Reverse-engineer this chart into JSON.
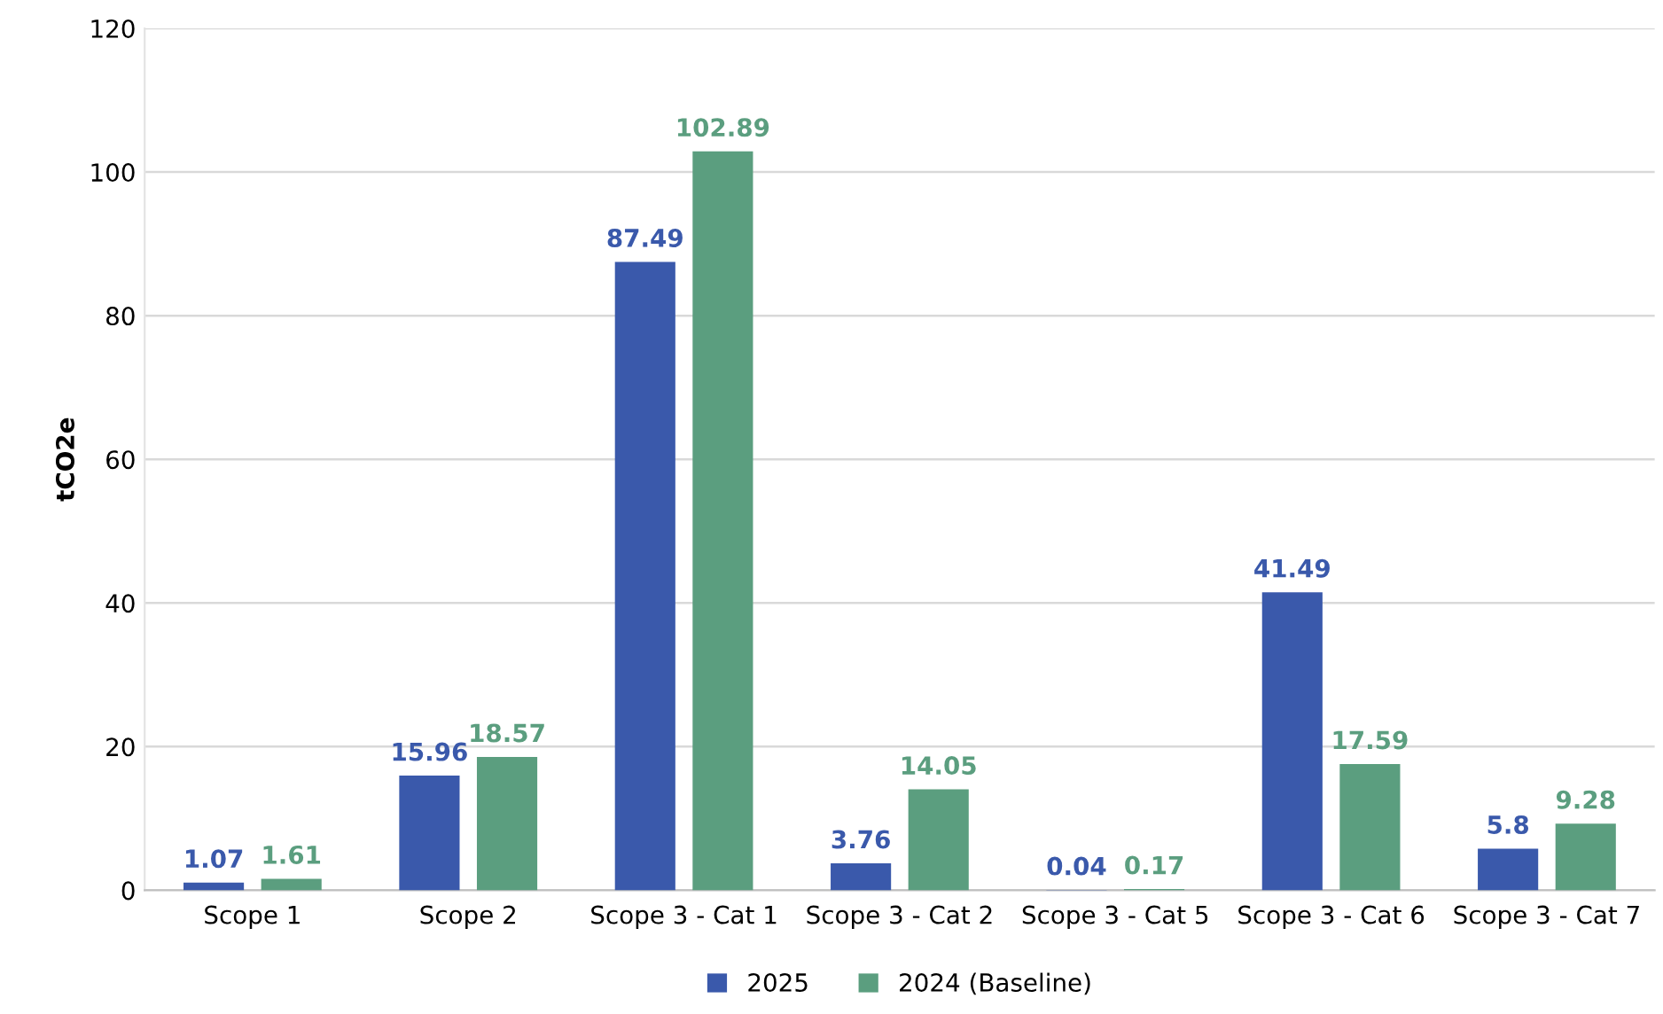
{
  "chart_data": {
    "type": "bar",
    "ylabel": "tCO2e",
    "categories": [
      "Scope 1",
      "Scope 2",
      "Scope 3 - Cat 1",
      "Scope 3 - Cat 2",
      "Scope 3 - Cat 5",
      "Scope 3 - Cat 6",
      "Scope 3 - Cat 7"
    ],
    "series": [
      {
        "name": "2025",
        "color": "#3a59ab",
        "values": [
          1.07,
          15.96,
          87.49,
          3.76,
          0.04,
          41.49,
          5.8
        ]
      },
      {
        "name": "2024 (Baseline)",
        "color": "#5b9e7f",
        "values": [
          1.61,
          18.57,
          102.89,
          14.05,
          0.17,
          17.59,
          9.28
        ]
      }
    ],
    "ylim": [
      0,
      120
    ],
    "yticks": [
      0,
      20,
      40,
      60,
      80,
      100,
      120
    ],
    "grid": "y",
    "legend": "bottom",
    "data_labels": true
  }
}
